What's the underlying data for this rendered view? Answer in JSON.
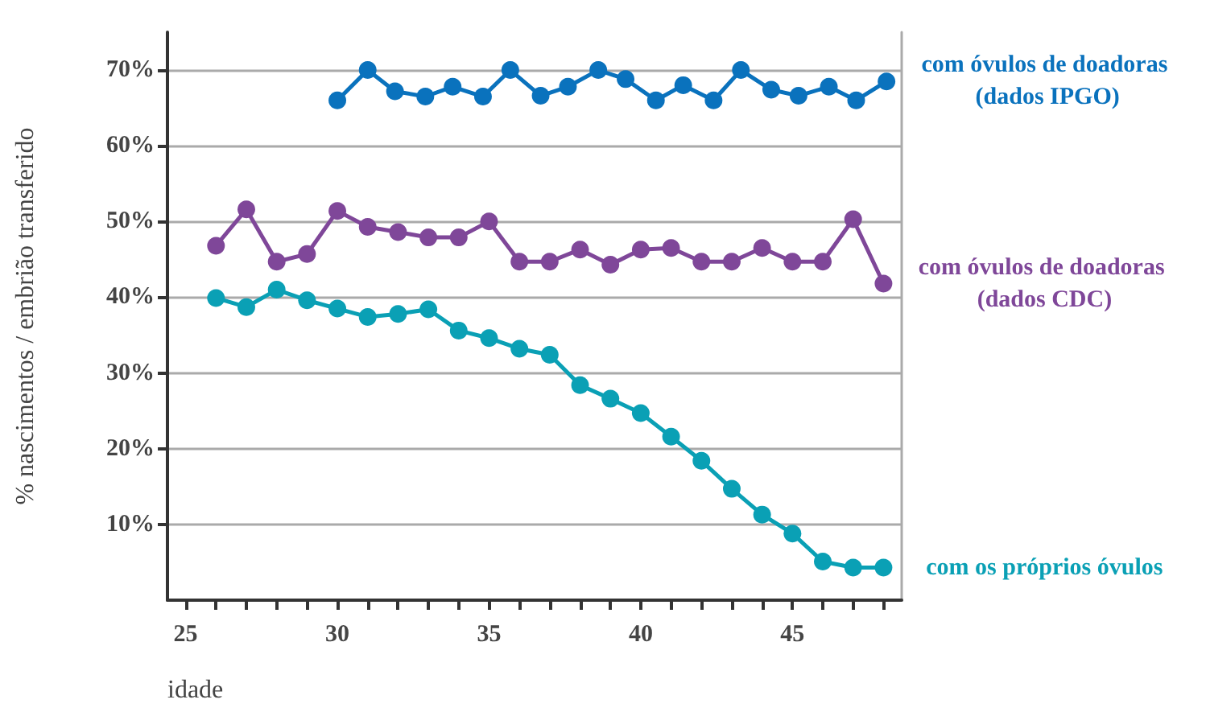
{
  "chart_data": {
    "type": "line",
    "xlabel": "idade",
    "ylabel": "% nascimentos / embrião transferido",
    "xlim": [
      24.4,
      48.6
    ],
    "xticks": [
      25,
      {
        "value": 26,
        "label": null
      },
      {
        "value": 27,
        "label": null
      },
      {
        "value": 28,
        "label": null
      },
      {
        "value": 29,
        "label": null
      },
      30,
      {
        "value": 31,
        "label": null
      },
      {
        "value": 32,
        "label": null
      },
      {
        "value": 33,
        "label": null
      },
      {
        "value": 34,
        "label": null
      },
      35,
      {
        "value": 36,
        "label": null
      },
      {
        "value": 37,
        "label": null
      },
      {
        "value": 38,
        "label": null
      },
      {
        "value": 39,
        "label": null
      },
      40,
      {
        "value": 41,
        "label": null
      },
      {
        "value": 42,
        "label": null
      },
      {
        "value": 43,
        "label": null
      },
      {
        "value": 44,
        "label": null
      },
      45,
      {
        "value": 46,
        "label": null
      },
      {
        "value": 47,
        "label": null
      },
      {
        "value": 48,
        "label": null
      }
    ],
    "ylim": [
      0,
      75
    ],
    "yticks": [
      {
        "value": 10,
        "label": "10%"
      },
      {
        "value": 20,
        "label": "20%"
      },
      {
        "value": 30,
        "label": "30%"
      },
      {
        "value": 40,
        "label": "40%"
      },
      {
        "value": 50,
        "label": "50%"
      },
      {
        "value": 60,
        "label": "60%"
      },
      {
        "value": 70,
        "label": "70%"
      }
    ],
    "grid": "y",
    "legend": false,
    "marker": "circle",
    "line_style": "solid",
    "series": [
      {
        "name": "com óvulos de doadoras (dados IPGO)",
        "color": "#0a72bd",
        "x": [
          30.0,
          31.0,
          31.9,
          32.9,
          33.8,
          34.8,
          35.7,
          36.7,
          37.6,
          38.6,
          39.5,
          40.5,
          41.4,
          42.4,
          43.3,
          44.3,
          45.2,
          46.2,
          47.1,
          48.1
        ],
        "values": [
          66.0,
          70.0,
          67.2,
          66.5,
          67.8,
          66.5,
          70.0,
          66.6,
          67.8,
          70.0,
          68.8,
          66.0,
          68.0,
          66.0,
          70.0,
          67.4,
          66.6,
          67.8,
          66.0,
          68.5
        ]
      },
      {
        "name": "com óvulos de doadoras (dados CDC)",
        "color": "#7f4799",
        "x": [
          26,
          27,
          28,
          29,
          30,
          31,
          32,
          33,
          34,
          35,
          36,
          37,
          38,
          39,
          40,
          41,
          42,
          43,
          44,
          45,
          46,
          47,
          48
        ],
        "values": [
          46.8,
          51.6,
          44.7,
          45.7,
          51.4,
          49.3,
          48.6,
          47.9,
          47.9,
          50.0,
          44.7,
          44.7,
          46.3,
          44.3,
          46.3,
          46.5,
          44.7,
          44.7,
          46.5,
          44.7,
          44.7,
          50.3,
          41.8
        ]
      },
      {
        "name": "com os próprios óvulos",
        "color": "#0aa0b5",
        "x": [
          26,
          27,
          28,
          29,
          30,
          31,
          32,
          33,
          34,
          35,
          36,
          37,
          38,
          39,
          40,
          41,
          42,
          43,
          44,
          45,
          46,
          47,
          48
        ],
        "values": [
          39.9,
          38.7,
          41.0,
          39.6,
          38.5,
          37.4,
          37.8,
          38.4,
          35.6,
          34.6,
          33.2,
          32.4,
          28.4,
          26.6,
          24.7,
          21.6,
          18.4,
          14.7,
          11.3,
          8.8,
          5.1,
          4.3,
          4.3
        ]
      }
    ]
  }
}
